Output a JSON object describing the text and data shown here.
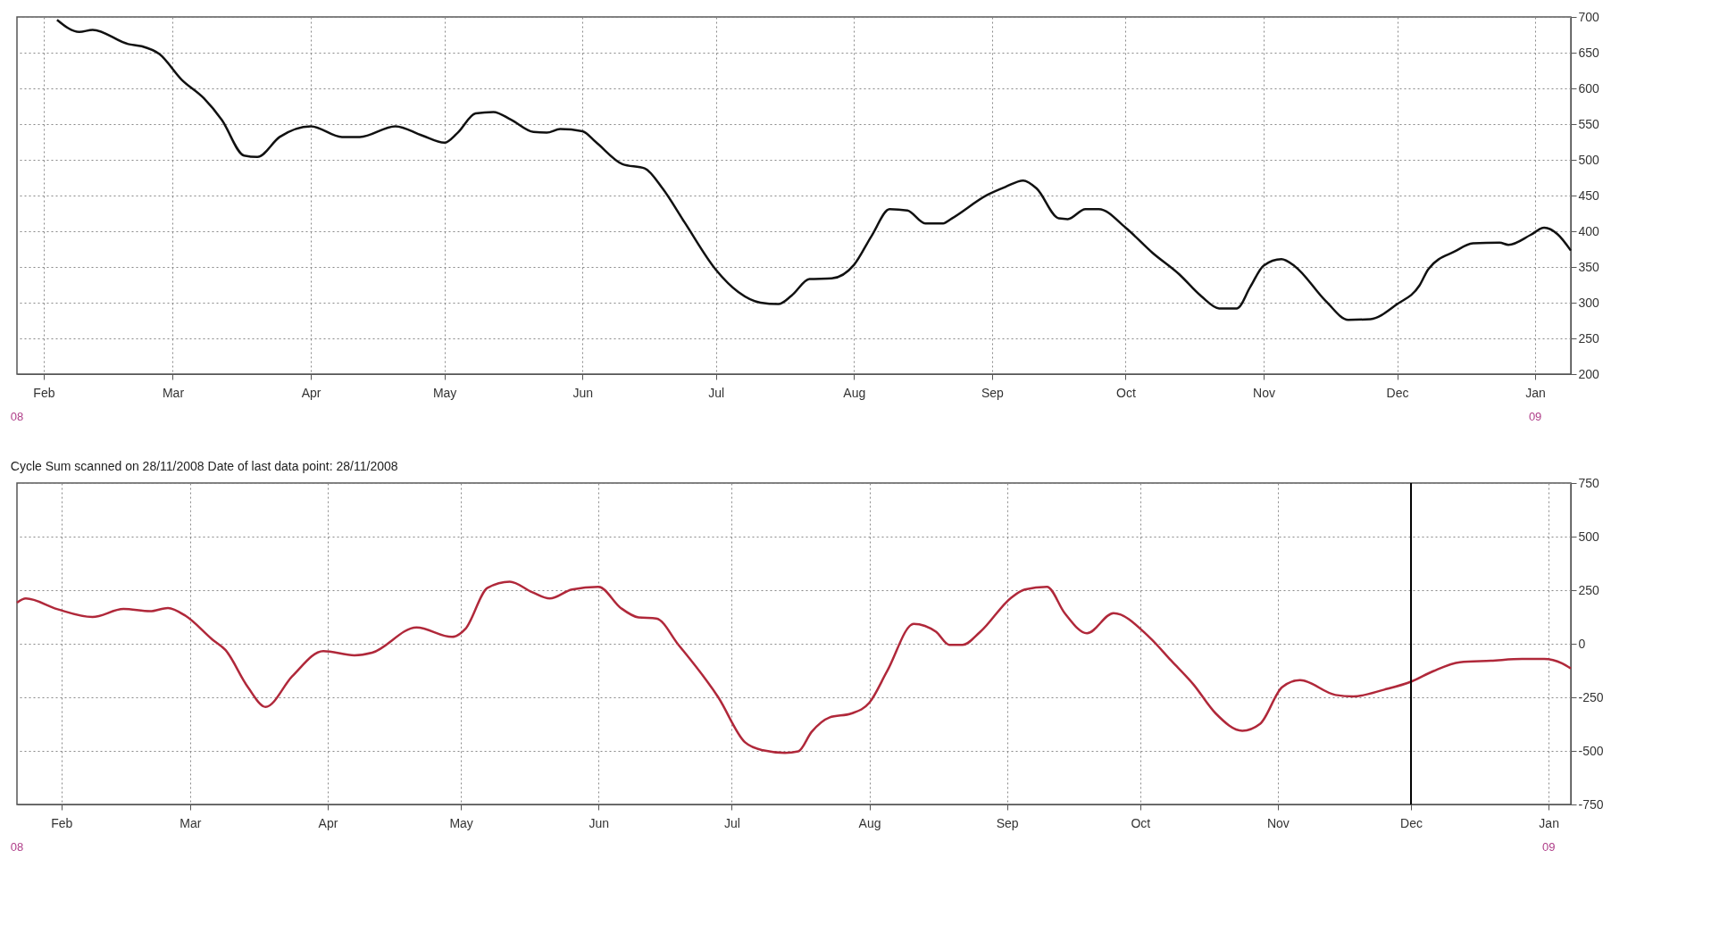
{
  "chart_data": [
    {
      "type": "line",
      "x": [
        "2008-02-04",
        "2008-02-09",
        "2008-02-12",
        "2008-02-20",
        "2008-02-23",
        "2008-02-27",
        "2008-03-03",
        "2008-03-08",
        "2008-03-12",
        "2008-03-17",
        "2008-03-20",
        "2008-03-25",
        "2008-04-01",
        "2008-04-08",
        "2008-04-12",
        "2008-04-20",
        "2008-04-26",
        "2008-05-01",
        "2008-05-04",
        "2008-05-08",
        "2008-05-12",
        "2008-05-16",
        "2008-05-21",
        "2008-05-24",
        "2008-05-27",
        "2008-06-01",
        "2008-06-04",
        "2008-06-10",
        "2008-06-15",
        "2008-06-19",
        "2008-06-24",
        "2008-07-01",
        "2008-07-06",
        "2008-07-11",
        "2008-07-15",
        "2008-07-18",
        "2008-07-22",
        "2008-07-27",
        "2008-08-01",
        "2008-08-05",
        "2008-08-09",
        "2008-08-13",
        "2008-08-17",
        "2008-08-21",
        "2008-08-23",
        "2008-08-31",
        "2008-09-04",
        "2008-09-08",
        "2008-09-11",
        "2008-09-16",
        "2008-09-18",
        "2008-09-22",
        "2008-09-25",
        "2008-10-01",
        "2008-10-07",
        "2008-10-13",
        "2008-10-18",
        "2008-10-22",
        "2008-10-26",
        "2008-10-29",
        "2008-11-01",
        "2008-11-05",
        "2008-11-08",
        "2008-11-15",
        "2008-11-20",
        "2008-11-25",
        "2008-12-01",
        "2008-12-06",
        "2008-12-08",
        "2008-12-14",
        "2008-12-18",
        "2008-12-24",
        "2008-12-26",
        "2008-12-31",
        "2009-01-03",
        "2009-01-06",
        "2009-01-09"
      ],
      "series": [
        {
          "color": "#111111",
          "values": [
            696,
            679,
            682,
            662,
            659,
            648,
            612,
            586,
            556,
            506,
            504,
            532,
            547,
            532,
            532,
            547,
            534,
            524,
            538,
            565,
            567,
            556,
            539,
            538,
            543,
            540,
            525,
            494,
            488,
            460,
            412,
            346,
            315,
            300,
            298,
            310,
            333,
            334,
            353,
            394,
            431,
            429,
            411,
            411,
            418,
            451,
            462,
            471,
            460,
            418,
            417,
            431,
            431,
            405,
            370,
            340,
            309,
            292,
            292,
            322,
            352,
            361,
            351,
            302,
            276,
            277,
            298,
            324,
            347,
            372,
            383,
            384,
            381,
            395,
            405,
            396,
            373
          ]
        }
      ],
      "xlim": [
        "2008-01-26",
        "2009-01-09"
      ],
      "ylim": [
        200,
        700
      ],
      "xticks": [
        {
          "value": "2008-02-01",
          "label": "Feb"
        },
        {
          "value": "2008-03-01",
          "label": "Mar"
        },
        {
          "value": "2008-04-01",
          "label": "Apr"
        },
        {
          "value": "2008-05-01",
          "label": "May"
        },
        {
          "value": "2008-06-01",
          "label": "Jun"
        },
        {
          "value": "2008-07-01",
          "label": "Jul"
        },
        {
          "value": "2008-08-01",
          "label": "Aug"
        },
        {
          "value": "2008-09-01",
          "label": "Sep"
        },
        {
          "value": "2008-10-01",
          "label": "Oct"
        },
        {
          "value": "2008-11-01",
          "label": "Nov"
        },
        {
          "value": "2008-12-01",
          "label": "Dec"
        },
        {
          "value": "2009-01-01",
          "label": "Jan"
        }
      ],
      "yticks": [
        200,
        250,
        300,
        350,
        400,
        450,
        500,
        550,
        600,
        650,
        700
      ],
      "grid": true,
      "line_style": "solid",
      "annotations": [
        "08",
        "09"
      ]
    },
    {
      "type": "line",
      "title": "Cycle Sum scanned on 28/11/2008 Date of last data point: 28/11/2008",
      "x": [
        "2008-01-22",
        "2008-01-24",
        "2008-01-31",
        "2008-02-08",
        "2008-02-15",
        "2008-02-21",
        "2008-02-25",
        "2008-02-29",
        "2008-03-06",
        "2008-03-09",
        "2008-03-14",
        "2008-03-18",
        "2008-03-24",
        "2008-03-31",
        "2008-04-07",
        "2008-04-11",
        "2008-04-21",
        "2008-04-29",
        "2008-05-02",
        "2008-05-07",
        "2008-05-12",
        "2008-05-17",
        "2008-05-21",
        "2008-05-26",
        "2008-06-01",
        "2008-06-06",
        "2008-06-10",
        "2008-06-14",
        "2008-06-19",
        "2008-06-28",
        "2008-07-04",
        "2008-07-08",
        "2008-07-13",
        "2008-07-16",
        "2008-07-19",
        "2008-07-23",
        "2008-07-28",
        "2008-08-01",
        "2008-08-05",
        "2008-08-11",
        "2008-08-16",
        "2008-08-19",
        "2008-08-22",
        "2008-08-26",
        "2008-09-02",
        "2008-09-05",
        "2008-09-10",
        "2008-09-14",
        "2008-09-19",
        "2008-09-25",
        "2008-10-03",
        "2008-10-08",
        "2008-10-13",
        "2008-10-18",
        "2008-10-24",
        "2008-10-28",
        "2008-11-02",
        "2008-11-06",
        "2008-11-14",
        "2008-11-18",
        "2008-11-25",
        "2008-12-01",
        "2008-12-06",
        "2008-12-12",
        "2008-12-19",
        "2008-12-26",
        "2008-12-31",
        "2009-01-04",
        "2009-01-06"
      ],
      "series": [
        {
          "color": "#b0283a",
          "values": [
            192,
            211,
            162,
            125,
            162,
            152,
            167,
            130,
            20,
            -30,
            -202,
            -295,
            -152,
            -34,
            -54,
            -42,
            76,
            32,
            69,
            261,
            290,
            241,
            211,
            253,
            266,
            167,
            123,
            118,
            -5,
            -251,
            -460,
            -497,
            -509,
            -502,
            -411,
            -344,
            -325,
            -275,
            -128,
            93,
            56,
            -5,
            -5,
            56,
            216,
            253,
            266,
            143,
            49,
            143,
            32,
            -79,
            -190,
            -325,
            -406,
            -374,
            -202,
            -170,
            -239,
            -246,
            -214,
            -177,
            -128,
            -86,
            -79,
            -71,
            -71,
            -91,
            -115
          ]
        }
      ],
      "xlim": [
        "2008-01-22",
        "2009-01-06"
      ],
      "ylim": [
        -750,
        750
      ],
      "xticks": [
        {
          "value": "2008-02-01",
          "label": "Feb"
        },
        {
          "value": "2008-03-01",
          "label": "Mar"
        },
        {
          "value": "2008-04-01",
          "label": "Apr"
        },
        {
          "value": "2008-05-01",
          "label": "May"
        },
        {
          "value": "2008-06-01",
          "label": "Jun"
        },
        {
          "value": "2008-07-01",
          "label": "Jul"
        },
        {
          "value": "2008-08-01",
          "label": "Aug"
        },
        {
          "value": "2008-09-01",
          "label": "Sep"
        },
        {
          "value": "2008-10-01",
          "label": "Oct"
        },
        {
          "value": "2008-11-01",
          "label": "Nov"
        },
        {
          "value": "2008-12-01",
          "label": "Dec"
        },
        {
          "value": "2009-01-01",
          "label": "Jan"
        }
      ],
      "yticks": [
        -750,
        -500,
        -250,
        0,
        250,
        500,
        750
      ],
      "grid": true,
      "line_style": "solid",
      "ref_lines": [
        {
          "axis": "x",
          "value": "2008-12-01",
          "color": "#000000"
        }
      ],
      "annotations": [
        "08",
        "09"
      ]
    }
  ]
}
